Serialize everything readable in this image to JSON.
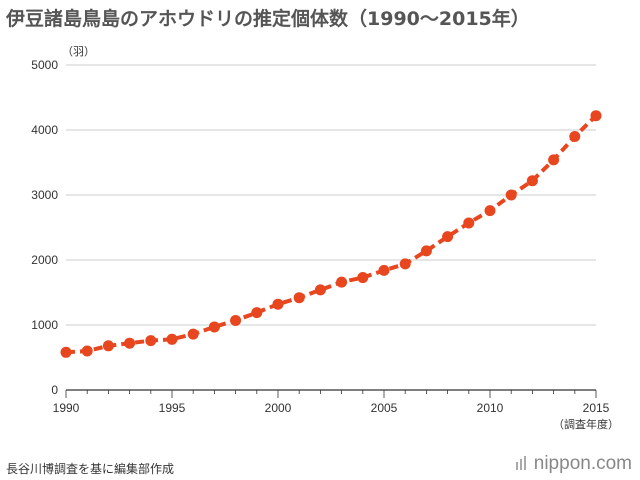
{
  "title": "伊豆諸島鳥島のアホウドリの推定個体数（1990〜2015年）",
  "source": "長谷川博調査を基に編集部作成",
  "logo": "nippon.com",
  "colors": {
    "line": "#e8461f",
    "grid": "#bbbbbb",
    "axis": "#333333"
  },
  "chart_data": {
    "type": "line",
    "title": "伊豆諸島鳥島のアホウドリの推定個体数（1990〜2015年）",
    "ylabel": "（羽）",
    "xlabel": "（調査年度）",
    "xlim": [
      1990,
      2015
    ],
    "ylim": [
      0,
      5000
    ],
    "x_ticks": [
      "1990",
      "1995",
      "2000",
      "2005",
      "2010",
      "2015"
    ],
    "y_ticks": [
      "0",
      "1000",
      "2000",
      "3000",
      "4000",
      "5000"
    ],
    "grid": true,
    "series": [
      {
        "x": [
          1990,
          1991,
          1992,
          1993,
          1994,
          1995,
          1996,
          1997,
          1998,
          1999,
          2000,
          2001,
          2002,
          2003,
          2004,
          2005,
          2006,
          2007,
          2008,
          2009,
          2010,
          2011,
          2012,
          2013,
          2014,
          2015
        ],
        "values": [
          580,
          600,
          680,
          720,
          760,
          780,
          860,
          970,
          1070,
          1190,
          1320,
          1420,
          1540,
          1660,
          1730,
          1840,
          1940,
          2140,
          2360,
          2570,
          2760,
          3000,
          3220,
          3540,
          3900,
          4220
        ]
      }
    ]
  }
}
